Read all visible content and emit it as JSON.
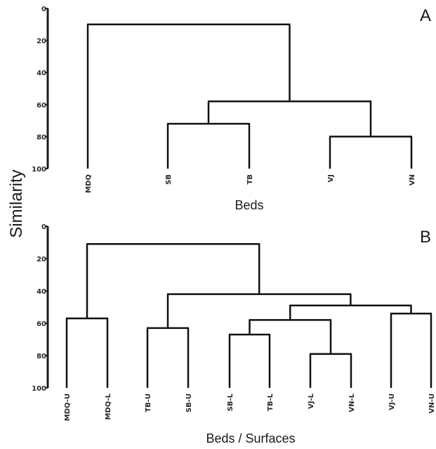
{
  "ylabel": "Similarity",
  "chart_data": [
    {
      "type": "dendrogram",
      "panel_letter": "A",
      "xlabel": "Beds",
      "ylabel": "Similarity",
      "ylim": [
        0,
        100
      ],
      "yticks": [
        "0",
        "20",
        "40",
        "60",
        "80",
        "100"
      ],
      "leaves": [
        "MDQ",
        "SB",
        "TB",
        "VJ",
        "VN"
      ],
      "merges": [
        {
          "left": "SB",
          "right": "TB",
          "similarity": 72
        },
        {
          "left": "VJ",
          "right": "VN",
          "similarity": 80
        },
        {
          "left": "SB+TB",
          "right": "VJ+VN",
          "similarity": 58
        },
        {
          "left": "MDQ",
          "right": "SB+TB+VJ+VN",
          "similarity": 10
        }
      ]
    },
    {
      "type": "dendrogram",
      "panel_letter": "B",
      "xlabel": "Beds / Surfaces",
      "ylabel": "Similarity",
      "ylim": [
        0,
        100
      ],
      "yticks": [
        "0",
        "20",
        "40",
        "60",
        "80",
        "100"
      ],
      "leaves": [
        "MDQ-U",
        "MDQ-L",
        "TB-U",
        "SB-U",
        "SB-L",
        "TB-L",
        "VJ-L",
        "VN-L",
        "VJ-U",
        "VN-U"
      ],
      "merges": [
        {
          "left": "MDQ-U",
          "right": "MDQ-L",
          "similarity": 57
        },
        {
          "left": "TB-U",
          "right": "SB-U",
          "similarity": 63
        },
        {
          "left": "SB-L",
          "right": "TB-L",
          "similarity": 67
        },
        {
          "left": "VJ-L",
          "right": "VN-L",
          "similarity": 79
        },
        {
          "left": "SB-L+TB-L",
          "right": "VJ-L+VN-L",
          "similarity": 58
        },
        {
          "left": "VJ-U",
          "right": "VN-U",
          "similarity": 54
        },
        {
          "left": "SB-L+TB-L+VJ-L+VN-L",
          "right": "VJ-U+VN-U",
          "similarity": 49
        },
        {
          "left": "TB-U+SB-U",
          "right": "SB-L+TB-L+VJ-L+VN-L+VJ-U+VN-U",
          "similarity": 42
        },
        {
          "left": "MDQ-U+MDQ-L",
          "right": "TB-U+SB-U+SB-L+TB-L+VJ-L+VN-L+VJ-U+VN-U",
          "similarity": 11
        }
      ]
    }
  ]
}
